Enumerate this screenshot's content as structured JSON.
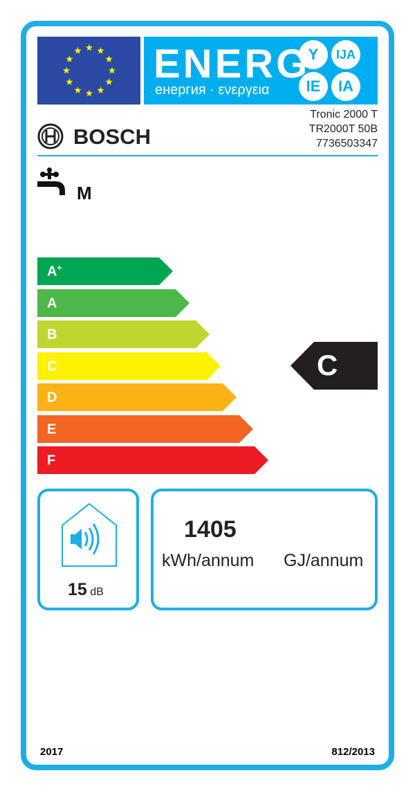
{
  "header": {
    "energy_word": "ENERG",
    "subtitle": "енергия · ενεργεια",
    "suffixes": [
      "Y",
      "IJA",
      "IE",
      "IA"
    ]
  },
  "supplier": {
    "brand": "BOSCH",
    "model_name": "Tronic 2000 T",
    "model_code": "TR2000T 50B",
    "article_number": "7736503347"
  },
  "load_profile": "M",
  "scale": [
    {
      "label": "A",
      "sup": "+",
      "color": "#00a651"
    },
    {
      "label": "A",
      "sup": "",
      "color": "#4cb848"
    },
    {
      "label": "B",
      "sup": "",
      "color": "#bed62f"
    },
    {
      "label": "C",
      "sup": "",
      "color": "#fff200"
    },
    {
      "label": "D",
      "sup": "",
      "color": "#fbb216"
    },
    {
      "label": "E",
      "sup": "",
      "color": "#f26522"
    },
    {
      "label": "F",
      "sup": "",
      "color": "#ed1c24"
    }
  ],
  "rating": {
    "class": "C",
    "color": "#231f20"
  },
  "noise": {
    "value": "15",
    "unit": "dB"
  },
  "consumption": {
    "value": "1405",
    "unit_kwh": "kWh/annum",
    "unit_gj": "GJ/annum"
  },
  "footer": {
    "year": "2017",
    "regulation": "812/2013"
  },
  "colors": {
    "frame": "#1eaee6",
    "eu_blue": "#2a4aa3",
    "energy_blue": "#00aeef"
  }
}
